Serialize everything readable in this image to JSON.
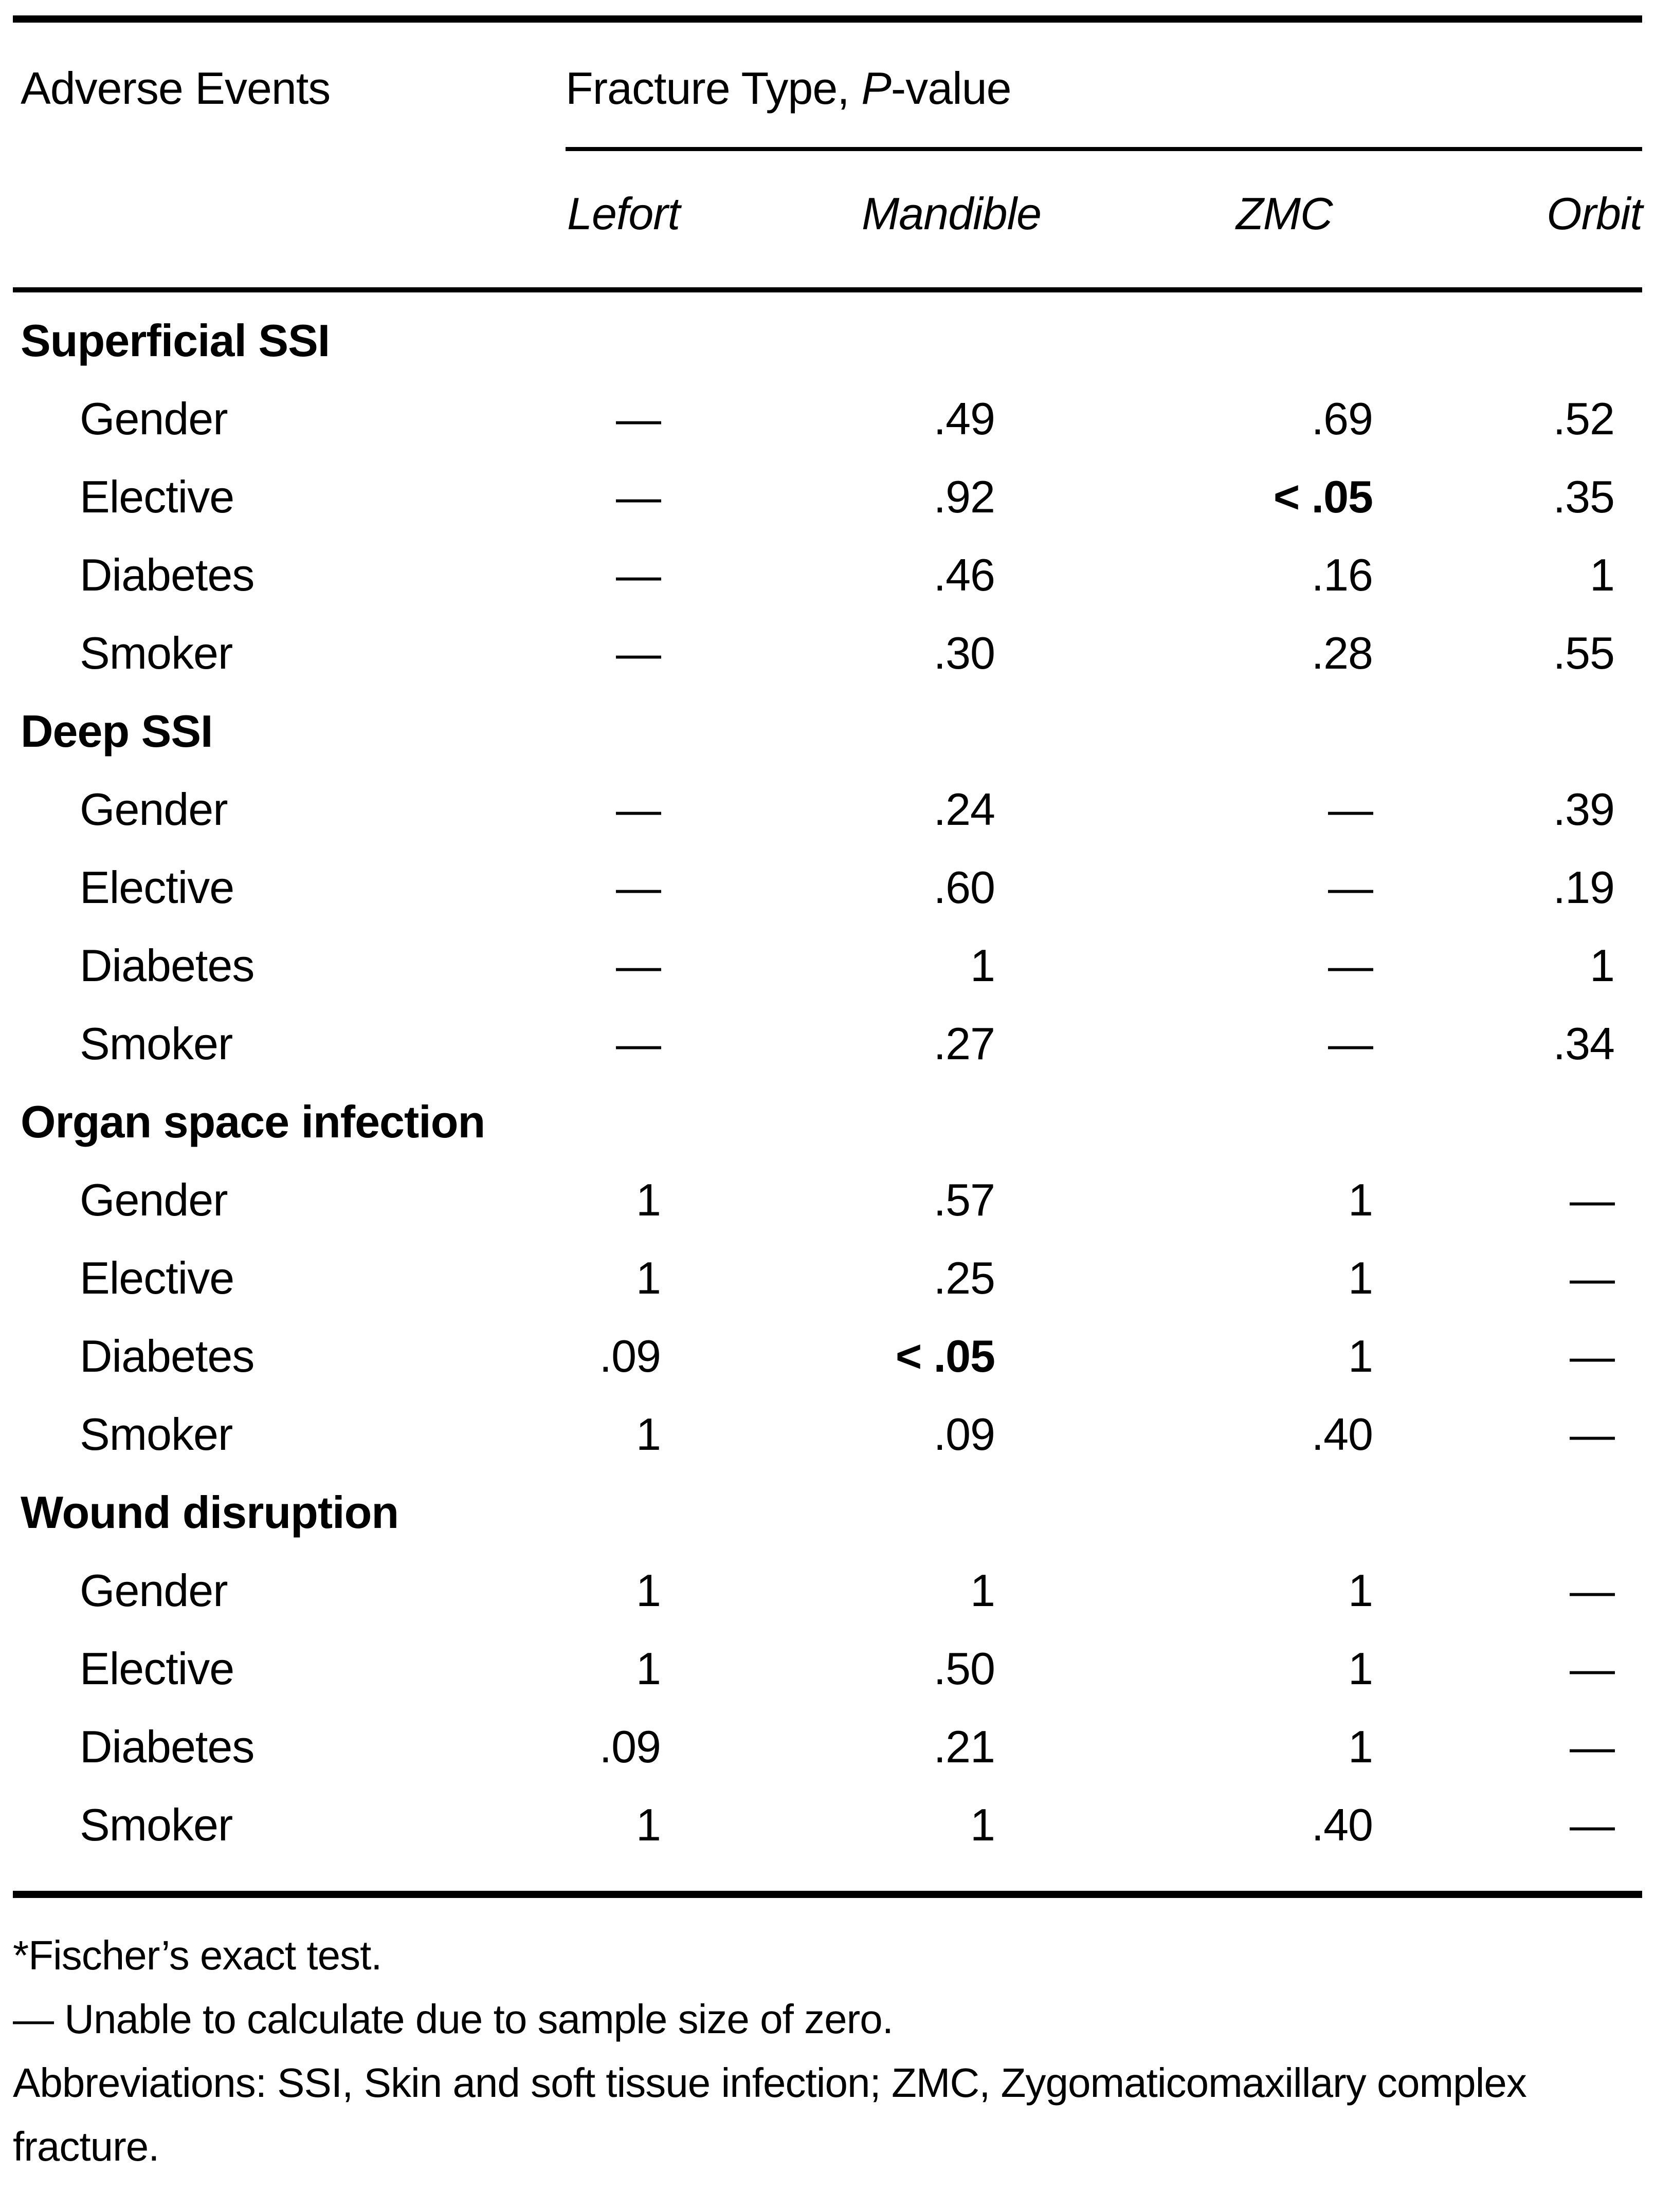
{
  "table": {
    "header": {
      "col1": "Adverse Events",
      "span_prefix": "Fracture Type, ",
      "span_italic": "P",
      "span_suffix": "-value",
      "columns": [
        "Lefort",
        "Mandible",
        "ZMC",
        "Orbit"
      ]
    },
    "sections": [
      {
        "title": "Superficial SSI",
        "rows": [
          {
            "label": "Gender",
            "values": [
              "—",
              ".49",
              ".69",
              ".52"
            ]
          },
          {
            "label": "Elective",
            "values": [
              "—",
              ".92",
              {
                "text": "< .05",
                "bold": true
              },
              ".35"
            ]
          },
          {
            "label": "Diabetes",
            "values": [
              "—",
              ".46",
              ".16",
              "1"
            ]
          },
          {
            "label": "Smoker",
            "values": [
              "—",
              ".30",
              ".28",
              ".55"
            ]
          }
        ]
      },
      {
        "title": "Deep SSI",
        "rows": [
          {
            "label": "Gender",
            "values": [
              "—",
              ".24",
              "—",
              ".39"
            ]
          },
          {
            "label": "Elective",
            "values": [
              "—",
              ".60",
              "—",
              ".19"
            ]
          },
          {
            "label": "Diabetes",
            "values": [
              "—",
              "1",
              "—",
              "1"
            ]
          },
          {
            "label": "Smoker",
            "values": [
              "—",
              ".27",
              "—",
              ".34"
            ]
          }
        ]
      },
      {
        "title": "Organ space infection",
        "rows": [
          {
            "label": "Gender",
            "values": [
              "1",
              ".57",
              "1",
              "—"
            ]
          },
          {
            "label": "Elective",
            "values": [
              "1",
              ".25",
              "1",
              "—"
            ]
          },
          {
            "label": "Diabetes",
            "values": [
              ".09",
              {
                "text": "< .05",
                "bold": true
              },
              "1",
              "—"
            ]
          },
          {
            "label": "Smoker",
            "values": [
              "1",
              ".09",
              ".40",
              "—"
            ]
          }
        ]
      },
      {
        "title": "Wound disruption",
        "rows": [
          {
            "label": "Gender",
            "values": [
              "1",
              "1",
              "1",
              "—"
            ]
          },
          {
            "label": "Elective",
            "values": [
              "1",
              ".50",
              "1",
              "—"
            ]
          },
          {
            "label": "Diabetes",
            "values": [
              ".09",
              ".21",
              "1",
              "—"
            ]
          },
          {
            "label": "Smoker",
            "values": [
              "1",
              "1",
              ".40",
              "—"
            ]
          }
        ]
      }
    ],
    "footnotes": [
      "*Fischer’s exact test.",
      "— Unable to calculate due to sample size of zero.",
      "Abbreviations: SSI, Skin and soft tissue infection; ZMC, Zygomaticomaxillary complex fracture."
    ],
    "colors": {
      "text": "#000000",
      "background": "#ffffff",
      "rule": "#000000"
    }
  }
}
